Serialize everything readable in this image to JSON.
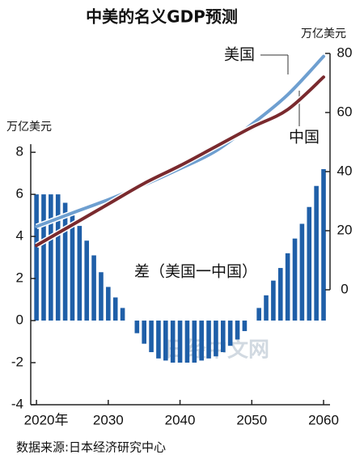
{
  "chart_data": {
    "type": "bar-line",
    "title": "中美的名义GDP预测",
    "y_unit": "万亿美元",
    "y2_unit": "万亿美元",
    "source": "数据来源:日本经济研究中心",
    "watermark": "日经中文网",
    "x": [
      2020,
      2021,
      2022,
      2023,
      2024,
      2025,
      2026,
      2027,
      2028,
      2029,
      2030,
      2031,
      2032,
      2033,
      2034,
      2035,
      2036,
      2037,
      2038,
      2039,
      2040,
      2041,
      2042,
      2043,
      2044,
      2045,
      2046,
      2047,
      2048,
      2049,
      2050,
      2051,
      2052,
      2053,
      2054,
      2055,
      2056,
      2057,
      2058,
      2059,
      2060
    ],
    "xlim": [
      2019.2,
      2060.9
    ],
    "xticks": [
      {
        "value": 2020,
        "label": "2020年"
      },
      2030,
      2040,
      2050,
      2060
    ],
    "ylim": [
      -4,
      12.7
    ],
    "yticks": [
      -4,
      -2,
      0,
      2,
      4,
      6,
      8
    ],
    "y2lim": [
      -38.9,
      80
    ],
    "y2ticks": [
      0,
      20,
      40,
      60,
      80
    ],
    "series": [
      {
        "name": "差（美国一中国）",
        "type": "bar",
        "color": "#1f5fa8",
        "values": [
          6.0,
          6.0,
          6.0,
          6.0,
          5.6,
          5.0,
          4.5,
          3.8,
          3.1,
          2.3,
          1.6,
          1.1,
          0.6,
          0.0,
          -0.6,
          -1.1,
          -1.5,
          -1.8,
          -1.9,
          -2.0,
          -2.0,
          -2.0,
          -2.0,
          -1.9,
          -1.8,
          -1.7,
          -1.5,
          -1.2,
          -0.9,
          -0.5,
          0.0,
          0.6,
          1.2,
          1.9,
          2.5,
          3.2,
          3.9,
          4.6,
          5.4,
          6.4,
          7.2
        ]
      },
      {
        "name": "美国",
        "type": "line",
        "axis": "y2",
        "color": "#6e9fd0",
        "x": [
          2020,
          2025,
          2030,
          2035,
          2040,
          2045,
          2050,
          2055,
          2060
        ],
        "values": [
          21.4,
          26,
          30.5,
          35.5,
          41,
          47,
          56,
          66,
          79
        ]
      },
      {
        "name": "中国",
        "type": "line",
        "axis": "y2",
        "color": "#7a2a2e",
        "x": [
          2020,
          2025,
          2030,
          2035,
          2040,
          2045,
          2050,
          2055,
          2060
        ],
        "values": [
          15,
          22,
          29,
          36,
          42,
          48.5,
          55,
          61,
          72
        ]
      }
    ]
  }
}
